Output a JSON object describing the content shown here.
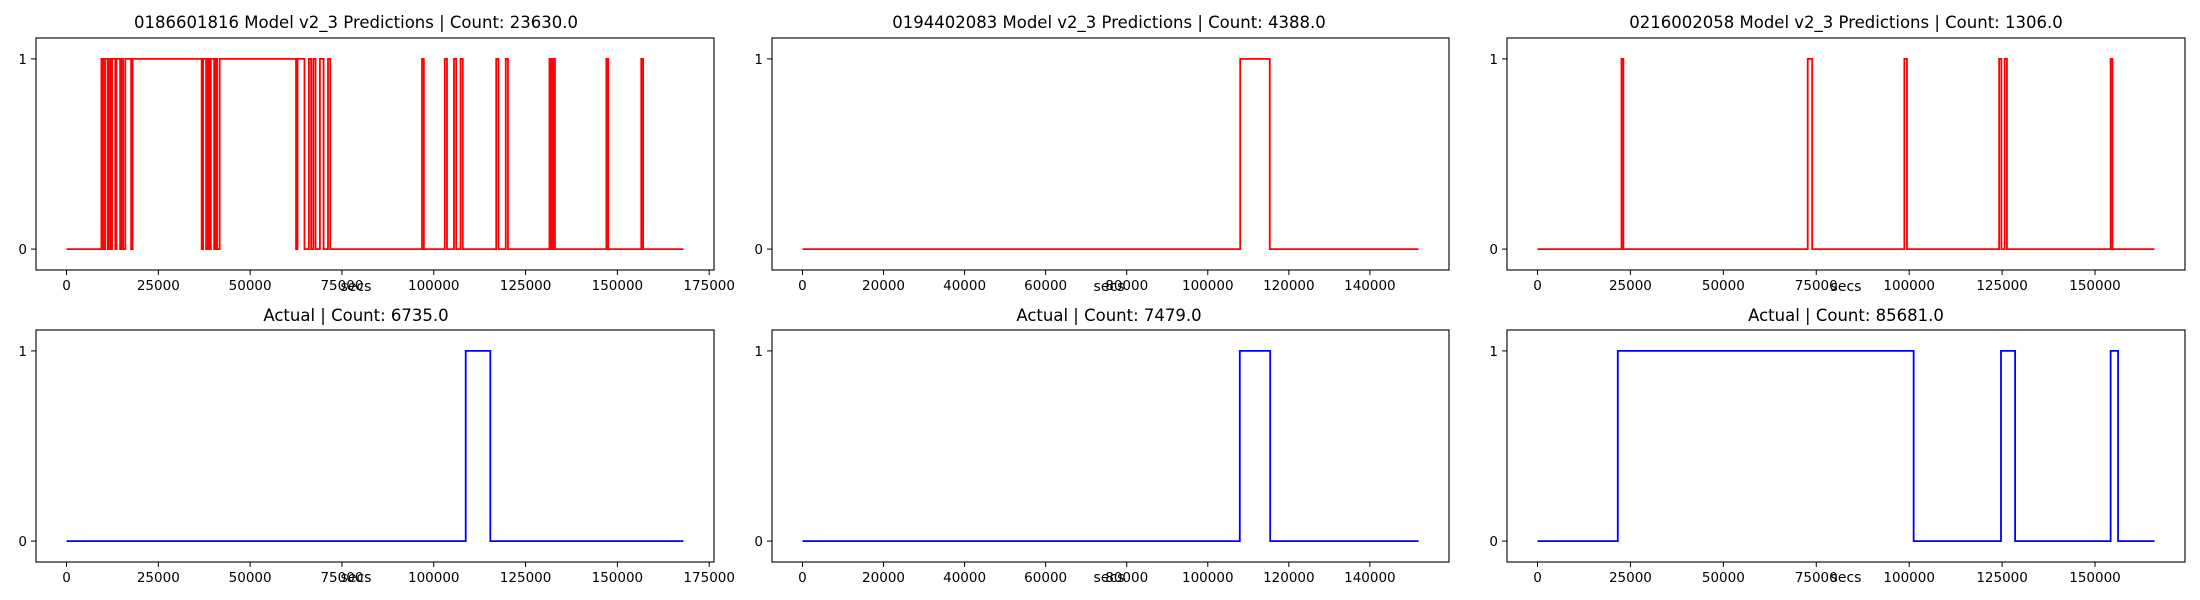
{
  "chart_data": [
    {
      "type": "line",
      "title": "0186601816 Model v2_3 Predictions | Count: 23630.0",
      "xlabel": "secs",
      "color": "#ff0000",
      "xlim": [
        0,
        168000
      ],
      "ylim": [
        0,
        1
      ],
      "xticks": [
        0,
        25000,
        50000,
        75000,
        100000,
        125000,
        150000,
        175000
      ],
      "xtick_labels": [
        "0",
        "25000",
        "50000",
        "75000",
        "100000",
        "125000",
        "150000",
        "175000"
      ],
      "yticks": [
        0,
        1
      ],
      "ytick_labels": [
        "0",
        "1"
      ],
      "on_intervals": [
        [
          9500,
          10000
        ],
        [
          10500,
          11200
        ],
        [
          11500,
          12000
        ],
        [
          12400,
          13300
        ],
        [
          13600,
          14600
        ],
        [
          14900,
          15400
        ],
        [
          16000,
          17600
        ],
        [
          18000,
          36800
        ],
        [
          37200,
          38000
        ],
        [
          38500,
          38900
        ],
        [
          39300,
          40200
        ],
        [
          40600,
          41000
        ],
        [
          41700,
          62500
        ],
        [
          62900,
          64800
        ],
        [
          66000,
          66600
        ],
        [
          67200,
          67800
        ],
        [
          69000,
          70000
        ],
        [
          71200,
          71800
        ],
        [
          96800,
          97300
        ],
        [
          103000,
          103600
        ],
        [
          105500,
          106100
        ],
        [
          107300,
          107900
        ],
        [
          117000,
          117600
        ],
        [
          119600,
          120200
        ],
        [
          131500,
          132000
        ],
        [
          132500,
          133000
        ],
        [
          147000,
          147500
        ],
        [
          156500,
          157000
        ]
      ]
    },
    {
      "type": "line",
      "title": "0194402083 Model v2_3 Predictions | Count: 4388.0",
      "xlabel": "secs",
      "color": "#ff0000",
      "xlim": [
        0,
        152000
      ],
      "ylim": [
        0,
        1
      ],
      "xticks": [
        0,
        20000,
        40000,
        60000,
        80000,
        100000,
        120000,
        140000
      ],
      "xtick_labels": [
        "0",
        "20000",
        "40000",
        "60000",
        "80000",
        "100000",
        "120000",
        "140000"
      ],
      "yticks": [
        0,
        1
      ],
      "ytick_labels": [
        "0",
        "1"
      ],
      "on_intervals": [
        [
          108000,
          115300
        ]
      ]
    },
    {
      "type": "line",
      "title": "0216002058 Model v2_3 Predictions | Count: 1306.0",
      "xlabel": "secs",
      "color": "#ff0000",
      "xlim": [
        0,
        166000
      ],
      "ylim": [
        0,
        1
      ],
      "xticks": [
        0,
        25000,
        50000,
        75000,
        100000,
        125000,
        150000
      ],
      "xtick_labels": [
        "0",
        "25000",
        "50000",
        "75000",
        "100000",
        "125000",
        "150000"
      ],
      "yticks": [
        0,
        1
      ],
      "ytick_labels": [
        "0",
        "1"
      ],
      "on_intervals": [
        [
          22600,
          23100
        ],
        [
          72700,
          73900
        ],
        [
          98700,
          99400
        ],
        [
          124200,
          124800
        ],
        [
          125700,
          126300
        ],
        [
          154200,
          154700
        ]
      ]
    },
    {
      "type": "line",
      "title": "Actual | Count: 6735.0",
      "xlabel": "secs",
      "color": "#0000ff",
      "xlim": [
        0,
        168000
      ],
      "ylim": [
        0,
        1
      ],
      "xticks": [
        0,
        25000,
        50000,
        75000,
        100000,
        125000,
        150000,
        175000
      ],
      "xtick_labels": [
        "0",
        "25000",
        "50000",
        "75000",
        "100000",
        "125000",
        "150000",
        "175000"
      ],
      "yticks": [
        0,
        1
      ],
      "ytick_labels": [
        "0",
        "1"
      ],
      "on_intervals": [
        [
          108700,
          115400
        ]
      ]
    },
    {
      "type": "line",
      "title": "Actual | Count: 7479.0",
      "xlabel": "secs",
      "color": "#0000ff",
      "xlim": [
        0,
        152000
      ],
      "ylim": [
        0,
        1
      ],
      "xticks": [
        0,
        20000,
        40000,
        60000,
        80000,
        100000,
        120000,
        140000
      ],
      "xtick_labels": [
        "0",
        "20000",
        "40000",
        "60000",
        "80000",
        "100000",
        "120000",
        "140000"
      ],
      "yticks": [
        0,
        1
      ],
      "ytick_labels": [
        "0",
        "1"
      ],
      "on_intervals": [
        [
          107900,
          115400
        ]
      ]
    },
    {
      "type": "line",
      "title": "Actual | Count: 85681.0",
      "xlabel": "secs",
      "color": "#0000ff",
      "xlim": [
        0,
        166000
      ],
      "ylim": [
        0,
        1
      ],
      "xticks": [
        0,
        25000,
        50000,
        75000,
        100000,
        125000,
        150000
      ],
      "xtick_labels": [
        "0",
        "25000",
        "50000",
        "75000",
        "100000",
        "125000",
        "150000"
      ],
      "yticks": [
        0,
        1
      ],
      "ytick_labels": [
        "0",
        "1"
      ],
      "on_intervals": [
        [
          21600,
          101200
        ],
        [
          124700,
          128500
        ],
        [
          154200,
          156200
        ]
      ]
    }
  ]
}
